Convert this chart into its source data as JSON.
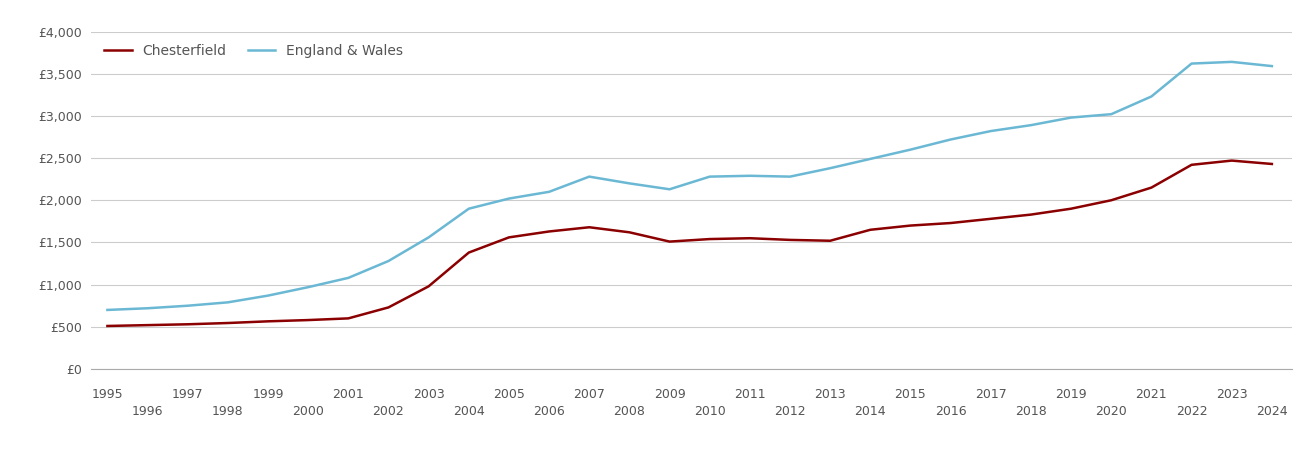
{
  "chesterfield": {
    "years": [
      1995,
      1996,
      1997,
      1998,
      1999,
      2000,
      2001,
      2002,
      2003,
      2004,
      2005,
      2006,
      2007,
      2008,
      2009,
      2010,
      2011,
      2012,
      2013,
      2014,
      2015,
      2016,
      2017,
      2018,
      2019,
      2020,
      2021,
      2022,
      2023,
      2024
    ],
    "values": [
      510,
      520,
      530,
      545,
      565,
      580,
      600,
      730,
      980,
      1380,
      1560,
      1630,
      1680,
      1620,
      1510,
      1540,
      1550,
      1530,
      1520,
      1650,
      1700,
      1730,
      1780,
      1830,
      1900,
      2000,
      2150,
      2420,
      2470,
      2430
    ]
  },
  "england_wales": {
    "years": [
      1995,
      1996,
      1997,
      1998,
      1999,
      2000,
      2001,
      2002,
      2003,
      2004,
      2005,
      2006,
      2007,
      2008,
      2009,
      2010,
      2011,
      2012,
      2013,
      2014,
      2015,
      2016,
      2017,
      2018,
      2019,
      2020,
      2021,
      2022,
      2023,
      2024
    ],
    "values": [
      700,
      720,
      750,
      790,
      870,
      970,
      1080,
      1280,
      1560,
      1900,
      2020,
      2100,
      2280,
      2200,
      2130,
      2280,
      2290,
      2280,
      2380,
      2490,
      2600,
      2720,
      2820,
      2890,
      2980,
      3020,
      3230,
      3620,
      3640,
      3590
    ]
  },
  "chesterfield_color": "#8b0000",
  "england_wales_color": "#6bb8d4",
  "background_color": "#ffffff",
  "grid_color": "#cccccc",
  "ylim": [
    0,
    4000
  ],
  "yticks": [
    0,
    500,
    1000,
    1500,
    2000,
    2500,
    3000,
    3500,
    4000
  ],
  "legend_labels": [
    "Chesterfield",
    "England & Wales"
  ],
  "line_width": 1.8,
  "xlim_left": 1994.6,
  "xlim_right": 2024.5,
  "tick_fontsize": 9,
  "tick_color": "#555555",
  "legend_fontsize": 10
}
